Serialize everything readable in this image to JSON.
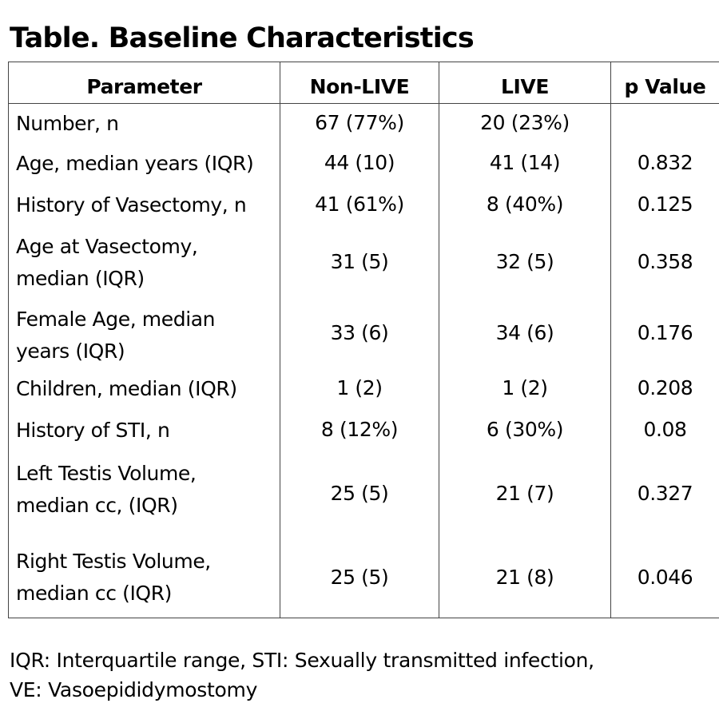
{
  "title": "Table. Baseline Characteristics",
  "table": {
    "headers": [
      "Parameter",
      "Non-LIVE",
      "LIVE",
      "p Value"
    ],
    "rows": [
      {
        "parameter": [
          "Number, n"
        ],
        "non_live": "67 (77%)",
        "live": "20 (23%)",
        "p_value": ""
      },
      {
        "parameter": [
          "Age, median years (IQR)"
        ],
        "non_live": "44 (10)",
        "live": "41 (14)",
        "p_value": "0.832"
      },
      {
        "parameter": [
          "History of Vasectomy, n"
        ],
        "non_live": "41 (61%)",
        "live": "8 (40%)",
        "p_value": "0.125"
      },
      {
        "parameter": [
          "Age at Vasectomy,",
          "median (IQR)"
        ],
        "non_live": "31 (5)",
        "live": "32 (5)",
        "p_value": "0.358"
      },
      {
        "parameter": [
          "Female Age, median",
          "years (IQR)"
        ],
        "non_live": "33 (6)",
        "live": "34 (6)",
        "p_value": "0.176"
      },
      {
        "parameter": [
          "Children, median (IQR)"
        ],
        "non_live": "1 (2)",
        "live": "1 (2)",
        "p_value": "0.208"
      },
      {
        "parameter": [
          "History of STI, n"
        ],
        "non_live": "8 (12%)",
        "live": "6 (30%)",
        "p_value": "0.08"
      },
      {
        "parameter": [
          "Left Testis Volume,",
          "median cc, (IQR)"
        ],
        "non_live": "25 (5)",
        "live": "21 (7)",
        "p_value": "0.327"
      },
      {
        "parameter": [
          "Right Testis Volume,",
          "median cc (IQR)"
        ],
        "non_live": "25 (5)",
        "live": "21 (8)",
        "p_value": "0.046"
      }
    ]
  },
  "footnote": [
    "IQR: Interquartile range, STI: Sexually transmitted infection,",
    "VE: Vasoepididymostomy"
  ]
}
